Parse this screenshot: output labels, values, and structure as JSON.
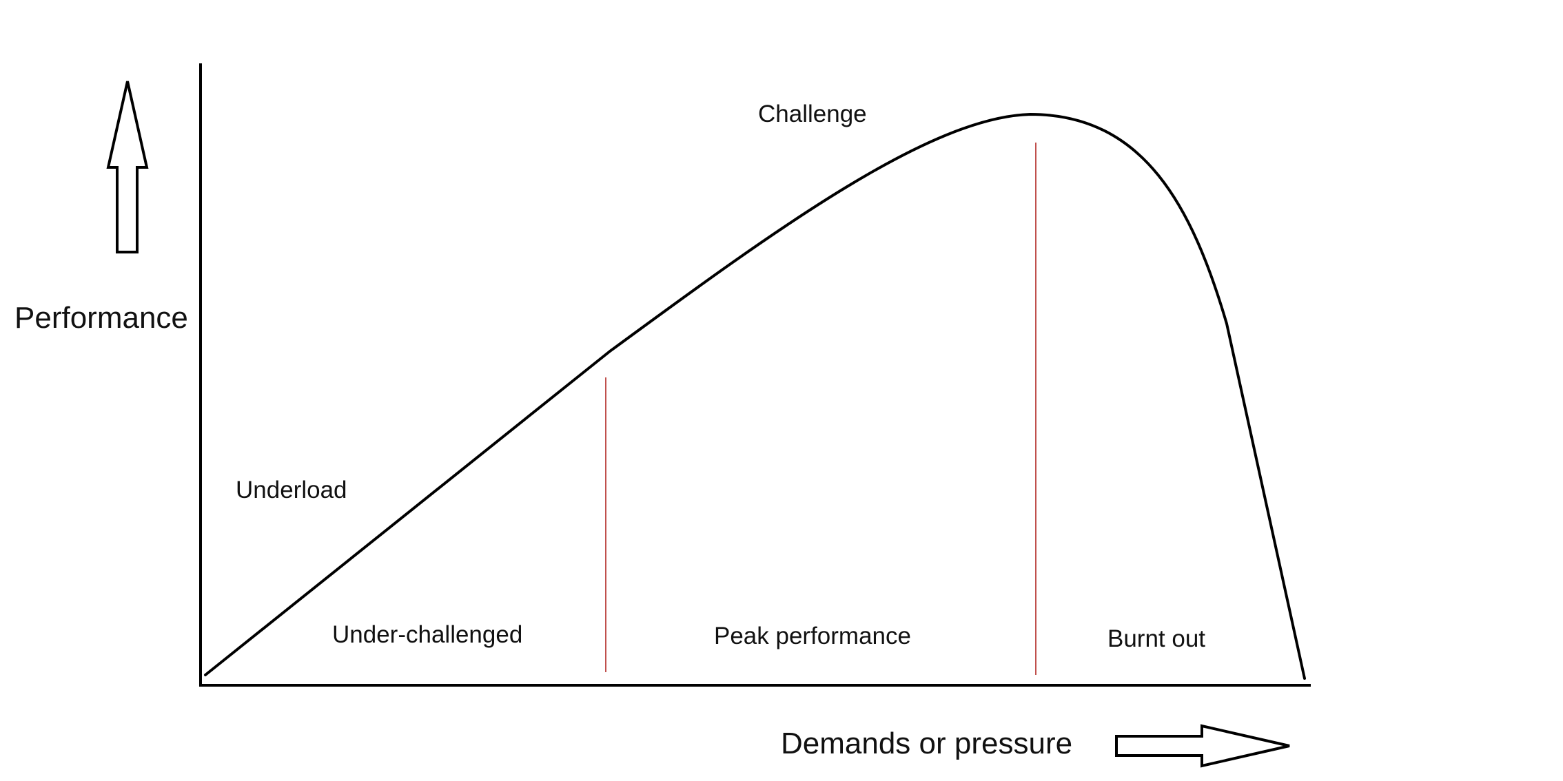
{
  "y_axis_label": "Performance",
  "x_axis_label": "Demands or pressure",
  "labels": {
    "underload": "Underload",
    "challenge": "Challenge",
    "under_challenged": "Under-challenged",
    "peak_performance": "Peak performance",
    "burnt_out": "Burnt out"
  },
  "colors": {
    "line": "#000000",
    "divider": "#c0504d"
  }
}
